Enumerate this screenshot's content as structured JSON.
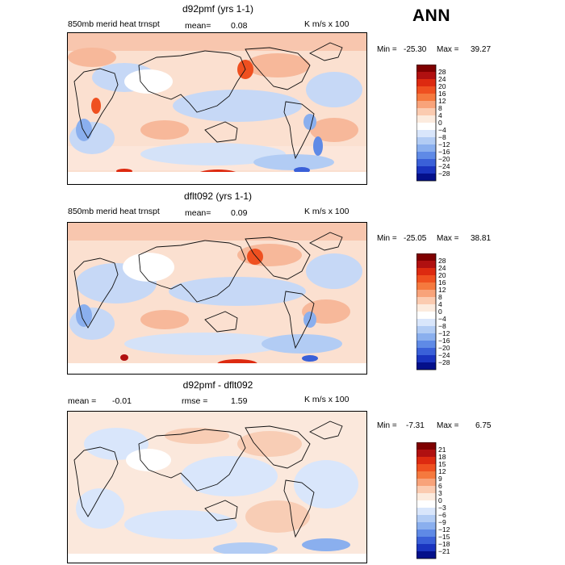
{
  "season": "ANN",
  "panels": [
    {
      "title": "d92pmf (yrs 1-1)",
      "left": "850mb merid heat trnspt",
      "mean_label": "mean=",
      "mean_value": "0.08",
      "units": "K m/s x 100",
      "min_label": "Min =",
      "min_value": "-25.30",
      "max_label": "Max =",
      "max_value": "39.27",
      "levels": [
        "28",
        "24",
        "20",
        "16",
        "12",
        "8",
        "4",
        "0",
        "−4",
        "−8",
        "−12",
        "−16",
        "−20",
        "−24",
        "−28"
      ]
    },
    {
      "title": "dflt092 (yrs 1-1)",
      "left": "850mb merid heat trnspt",
      "mean_label": "mean=",
      "mean_value": "0.09",
      "units": "K m/s x 100",
      "min_label": "Min =",
      "min_value": "-25.05",
      "max_label": "Max =",
      "max_value": "38.81",
      "levels": [
        "28",
        "24",
        "20",
        "16",
        "12",
        "8",
        "4",
        "0",
        "−4",
        "−8",
        "−12",
        "−16",
        "−20",
        "−24",
        "−28"
      ]
    },
    {
      "title": "d92pmf - dflt092",
      "mean_label": "mean =",
      "mean_value": "-0.01",
      "rmse_label": "rmse =",
      "rmse_value": "1.59",
      "units": "K m/s x 100",
      "min_label": "Min =",
      "min_value": "-7.31",
      "max_label": "Max =",
      "max_value": "6.75",
      "levels": [
        "21",
        "18",
        "15",
        "12",
        "9",
        "6",
        "3",
        "0",
        "−3",
        "−6",
        "−9",
        "−12",
        "−15",
        "−18",
        "−21"
      ]
    }
  ],
  "colors": {
    "palette": [
      "#7f0000",
      "#b01010",
      "#dd2a10",
      "#ef5020",
      "#f5793e",
      "#f8a37a",
      "#fbcbb0",
      "#fcebde",
      "#ffffff",
      "#d9e6fb",
      "#b2ccf4",
      "#8aafee",
      "#5f8ae6",
      "#3a60d8",
      "#1a34bf",
      "#04108a"
    ]
  }
}
